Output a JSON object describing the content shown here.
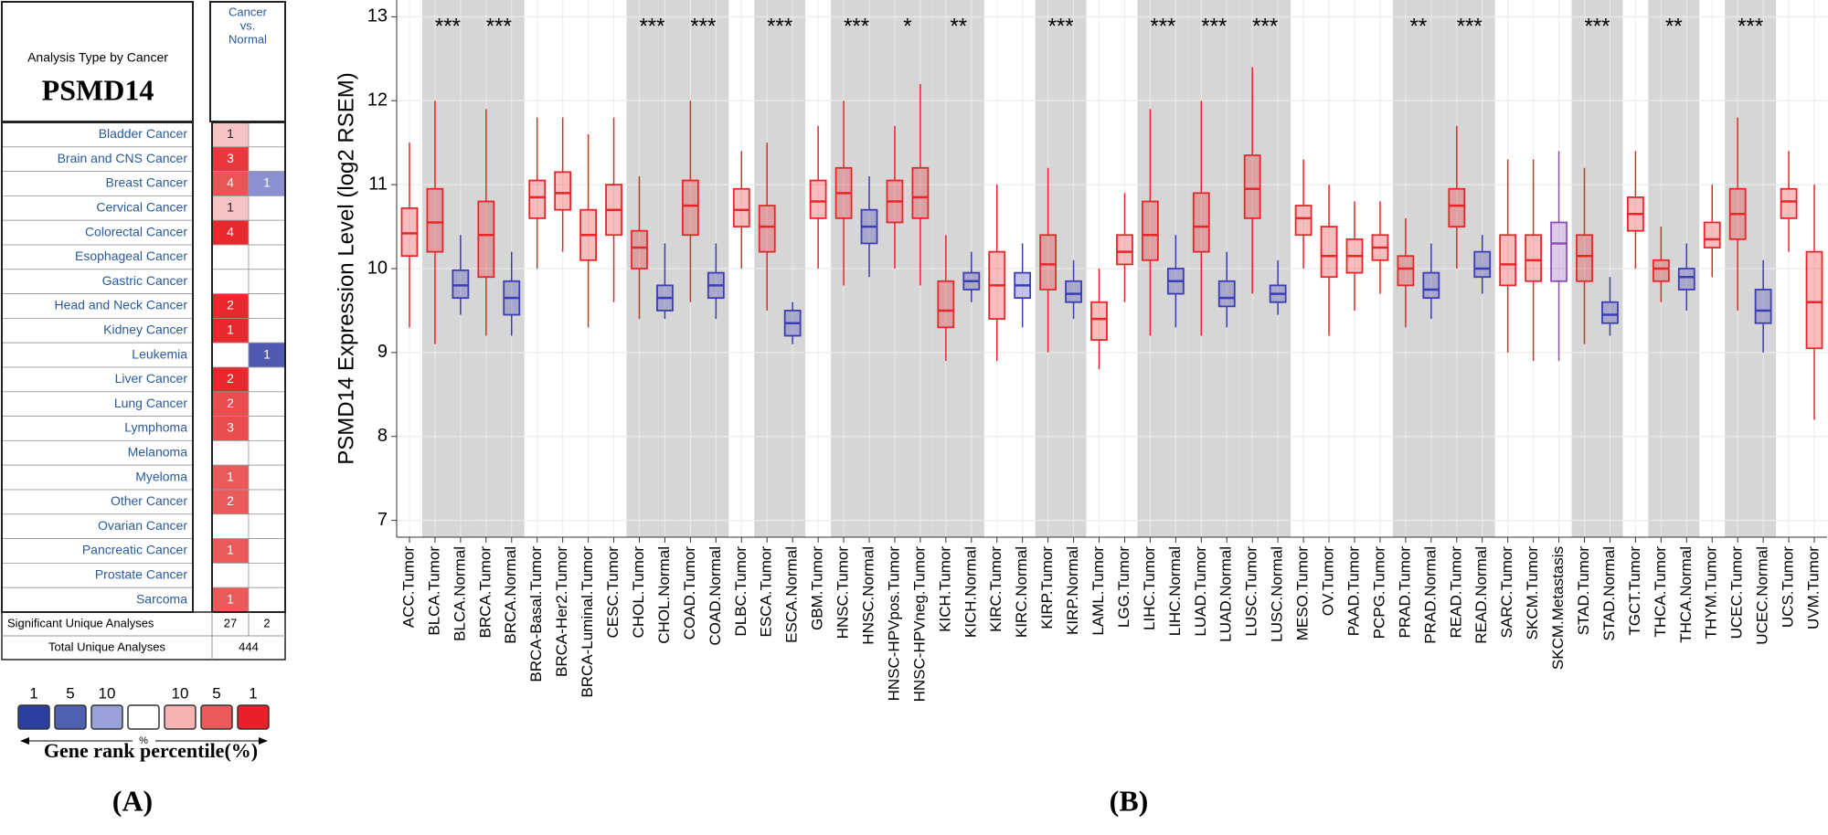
{
  "oncomine": {
    "header": "Analysis Type by Cancer",
    "gene": "PSMD14",
    "column_header": [
      "Cancer",
      "vs.",
      "Normal"
    ],
    "cancers": [
      "Bladder Cancer",
      "Brain and CNS Cancer",
      "Breast Cancer",
      "Cervical Cancer",
      "Colorectal Cancer",
      "Esophageal Cancer",
      "Gastric Cancer",
      "Head and Neck Cancer",
      "Kidney Cancer",
      "Leukemia",
      "Liver Cancer",
      "Lung Cancer",
      "Lymphoma",
      "Melanoma",
      "Myeloma",
      "Other Cancer",
      "Ovarian Cancer",
      "Pancreatic Cancer",
      "Prostate Cancer",
      "Sarcoma"
    ],
    "over": [
      1,
      3,
      4,
      1,
      4,
      null,
      null,
      2,
      1,
      null,
      2,
      2,
      3,
      null,
      1,
      2,
      null,
      1,
      null,
      1
    ],
    "over_colors": [
      "#f6c4c4",
      "#e8383d",
      "#e85555",
      "#f6c4c4",
      "#e8282c",
      null,
      null,
      "#e8282c",
      "#e8282c",
      null,
      "#e8282c",
      "#e94d4d",
      "#e94d4d",
      null,
      "#ea5a5a",
      "#ea5a5a",
      null,
      "#ea5a5a",
      null,
      "#ea5a5a"
    ],
    "under": [
      null,
      null,
      1,
      null,
      null,
      null,
      null,
      null,
      null,
      1,
      null,
      null,
      null,
      null,
      null,
      null,
      null,
      null,
      null,
      null
    ],
    "under_colors": [
      null,
      null,
      "#8c90d0",
      null,
      null,
      null,
      null,
      null,
      null,
      "#5058b0",
      null,
      null,
      null,
      null,
      null,
      null,
      null,
      null,
      null,
      null
    ],
    "significant_label": "Significant Unique Analyses",
    "significant_over": 27,
    "significant_under": 2,
    "total_label": "Total Unique Analyses",
    "total": 444,
    "legend": {
      "labels": [
        1,
        5,
        10,
        null,
        10,
        5,
        1
      ],
      "colors": [
        "#2b3f9e",
        "#5060b0",
        "#9aa0d8",
        "#ffffff",
        "#f6b3b3",
        "#e95a5a",
        "#e8202a"
      ],
      "percent": "%",
      "title": "Gene rank percentile(%)"
    }
  },
  "panel_labels": [
    "(A)",
    "(B)"
  ],
  "chart_data": {
    "type": "box",
    "ylabel": "PSMD14 Expression Level (log2 RSEM)",
    "categories": [
      "ACC.Tumor",
      "BLCA.Tumor",
      "BLCA.Normal",
      "BRCA.Tumor",
      "BRCA.Normal",
      "BRCA-Basal.Tumor",
      "BRCA-Her2.Tumor",
      "BRCA-Luminal.Tumor",
      "CESC.Tumor",
      "CHOL.Tumor",
      "CHOL.Normal",
      "COAD.Tumor",
      "COAD.Normal",
      "DLBC.Tumor",
      "ESCA.Tumor",
      "ESCA.Normal",
      "GBM.Tumor",
      "HNSC.Tumor",
      "HNSC.Normal",
      "HNSC-HPVpos.Tumor",
      "HNSC-HPVneg.Tumor",
      "KICH.Tumor",
      "KICH.Normal",
      "KIRC.Tumor",
      "KIRC.Normal",
      "KIRP.Tumor",
      "KIRP.Normal",
      "LAML.Tumor",
      "LGG.Tumor",
      "LIHC.Tumor",
      "LIHC.Normal",
      "LUAD.Tumor",
      "LUAD.Normal",
      "LUSC.Tumor",
      "LUSC.Normal",
      "MESO.Tumor",
      "OV.Tumor",
      "PAAD.Tumor",
      "PCPG.Tumor",
      "PRAD.Tumor",
      "PRAD.Normal",
      "READ.Tumor",
      "READ.Normal",
      "SARC.Tumor",
      "SKCM.Tumor",
      "SKCM.Metastasis",
      "STAD.Tumor",
      "STAD.Normal",
      "TGCT.Tumor",
      "THCA.Tumor",
      "THCA.Normal",
      "THYM.Tumor",
      "UCEC.Tumor",
      "UCEC.Normal",
      "UCS.Tumor",
      "UVM.Tumor"
    ],
    "q1": [
      10.15,
      10.2,
      9.65,
      9.9,
      9.45,
      10.6,
      10.7,
      10.1,
      10.4,
      10.0,
      9.5,
      10.4,
      9.65,
      10.5,
      10.2,
      9.2,
      10.6,
      10.6,
      10.3,
      10.55,
      10.6,
      9.3,
      9.75,
      9.4,
      9.65,
      9.75,
      9.6,
      9.15,
      10.05,
      10.1,
      9.7,
      10.2,
      9.55,
      10.6,
      9.6,
      10.4,
      9.9,
      9.95,
      10.1,
      9.8,
      9.65,
      10.5,
      9.9,
      9.8,
      9.85,
      9.85,
      9.85,
      9.35,
      10.45,
      9.85,
      9.75,
      10.25,
      10.35,
      9.35,
      10.6,
      9.05
    ],
    "median": [
      10.42,
      10.55,
      9.8,
      10.4,
      9.65,
      10.85,
      10.9,
      10.4,
      10.7,
      10.25,
      9.65,
      10.75,
      9.8,
      10.7,
      10.5,
      9.35,
      10.8,
      10.9,
      10.5,
      10.8,
      10.85,
      9.5,
      9.85,
      9.8,
      9.8,
      10.05,
      9.7,
      9.4,
      10.2,
      10.4,
      9.85,
      10.5,
      9.65,
      10.95,
      9.7,
      10.6,
      10.15,
      10.15,
      10.25,
      10.0,
      9.75,
      10.75,
      10.0,
      10.05,
      10.1,
      10.3,
      10.15,
      9.45,
      10.65,
      10.0,
      9.9,
      10.35,
      10.65,
      9.5,
      10.8,
      9.6
    ],
    "q3": [
      10.72,
      10.95,
      9.98,
      10.8,
      9.85,
      11.05,
      11.15,
      10.7,
      11.0,
      10.45,
      9.8,
      11.05,
      9.95,
      10.95,
      10.75,
      9.5,
      11.05,
      11.2,
      10.7,
      11.05,
      11.2,
      9.85,
      9.95,
      10.2,
      9.95,
      10.4,
      9.85,
      9.6,
      10.4,
      10.8,
      10.0,
      10.9,
      9.85,
      11.35,
      9.8,
      10.75,
      10.5,
      10.35,
      10.4,
      10.15,
      9.95,
      10.95,
      10.2,
      10.4,
      10.4,
      10.55,
      10.4,
      9.6,
      10.85,
      10.1,
      10.0,
      10.55,
      10.95,
      9.75,
      10.95,
      10.2
    ],
    "whisker_low": [
      9.3,
      9.1,
      9.45,
      9.2,
      9.2,
      10.0,
      10.2,
      9.3,
      9.6,
      9.4,
      9.4,
      9.6,
      9.4,
      10.0,
      9.5,
      9.1,
      10.0,
      9.8,
      9.9,
      10.0,
      9.8,
      8.9,
      9.6,
      8.9,
      9.3,
      9.0,
      9.4,
      8.8,
      9.6,
      9.2,
      9.3,
      9.2,
      9.3,
      9.7,
      9.45,
      10.0,
      9.2,
      9.5,
      9.7,
      9.3,
      9.4,
      10.0,
      9.7,
      9.0,
      8.9,
      8.9,
      9.1,
      9.2,
      10.0,
      9.6,
      9.5,
      9.9,
      9.5,
      9.0,
      10.2,
      8.2
    ],
    "whisker_high": [
      11.5,
      12.0,
      10.4,
      11.9,
      10.2,
      11.8,
      11.8,
      11.6,
      11.8,
      11.1,
      10.3,
      12.0,
      10.3,
      11.4,
      11.5,
      9.6,
      11.7,
      12.0,
      11.1,
      11.7,
      12.2,
      10.4,
      10.2,
      11.0,
      10.3,
      11.2,
      10.1,
      10.0,
      10.9,
      11.9,
      10.4,
      12.0,
      10.2,
      12.4,
      10.1,
      11.3,
      11.0,
      10.8,
      10.8,
      10.6,
      10.3,
      11.7,
      10.4,
      11.3,
      11.3,
      11.4,
      11.2,
      9.9,
      11.4,
      10.5,
      10.3,
      11.0,
      11.8,
      10.1,
      11.4,
      11.0
    ],
    "colors": [
      "#e8262a",
      "#e8262a",
      "#3c3cb4",
      "#e8262a",
      "#3c3cb4",
      "#e8262a",
      "#e8262a",
      "#e8262a",
      "#e8262a",
      "#e8262a",
      "#3c3cb4",
      "#e8262a",
      "#3c3cb4",
      "#e8262a",
      "#e8262a",
      "#3c3cb4",
      "#e8262a",
      "#e8262a",
      "#3c3cb4",
      "#e8262a",
      "#e8262a",
      "#e8262a",
      "#3c3cb4",
      "#e8262a",
      "#3c3cb4",
      "#e8262a",
      "#3c3cb4",
      "#e8262a",
      "#e8262a",
      "#e8262a",
      "#3c3cb4",
      "#e8262a",
      "#3c3cb4",
      "#e8262a",
      "#3c3cb4",
      "#e8262a",
      "#e8262a",
      "#e8262a",
      "#e8262a",
      "#e8262a",
      "#3c3cb4",
      "#e8262a",
      "#3c3cb4",
      "#e8262a",
      "#e8262a",
      "#8a50b4",
      "#e8262a",
      "#3c3cb4",
      "#e8262a",
      "#e8262a",
      "#3c3cb4",
      "#e8262a",
      "#e8262a",
      "#3c3cb4",
      "#e8262a",
      "#e8262a"
    ],
    "significance": [
      {
        "label": "***",
        "pair": [
          1,
          2
        ]
      },
      {
        "label": "***",
        "pair": [
          3,
          4
        ]
      },
      {
        "label": "***",
        "pair": [
          9,
          10
        ]
      },
      {
        "label": "***",
        "pair": [
          11,
          12
        ]
      },
      {
        "label": "***",
        "pair": [
          14,
          15
        ]
      },
      {
        "label": "***",
        "pair": [
          17,
          18
        ]
      },
      {
        "label": "*",
        "pair": [
          19,
          20
        ]
      },
      {
        "label": "**",
        "pair": [
          21,
          22
        ]
      },
      {
        "label": "***",
        "pair": [
          25,
          26
        ]
      },
      {
        "label": "***",
        "pair": [
          29,
          30
        ]
      },
      {
        "label": "***",
        "pair": [
          31,
          32
        ]
      },
      {
        "label": "***",
        "pair": [
          33,
          34
        ]
      },
      {
        "label": "**",
        "pair": [
          39,
          40
        ]
      },
      {
        "label": "***",
        "pair": [
          41,
          42
        ]
      },
      {
        "label": "***",
        "pair": [
          46,
          47
        ]
      },
      {
        "label": "**",
        "pair": [
          49,
          50
        ]
      },
      {
        "label": "***",
        "pair": [
          52,
          53
        ]
      }
    ],
    "shade_color": "#d6d6d6",
    "ylim": [
      6.8,
      13.2
    ],
    "yticks": [
      7,
      8,
      9,
      10,
      11,
      12,
      13
    ],
    "grid": true
  }
}
